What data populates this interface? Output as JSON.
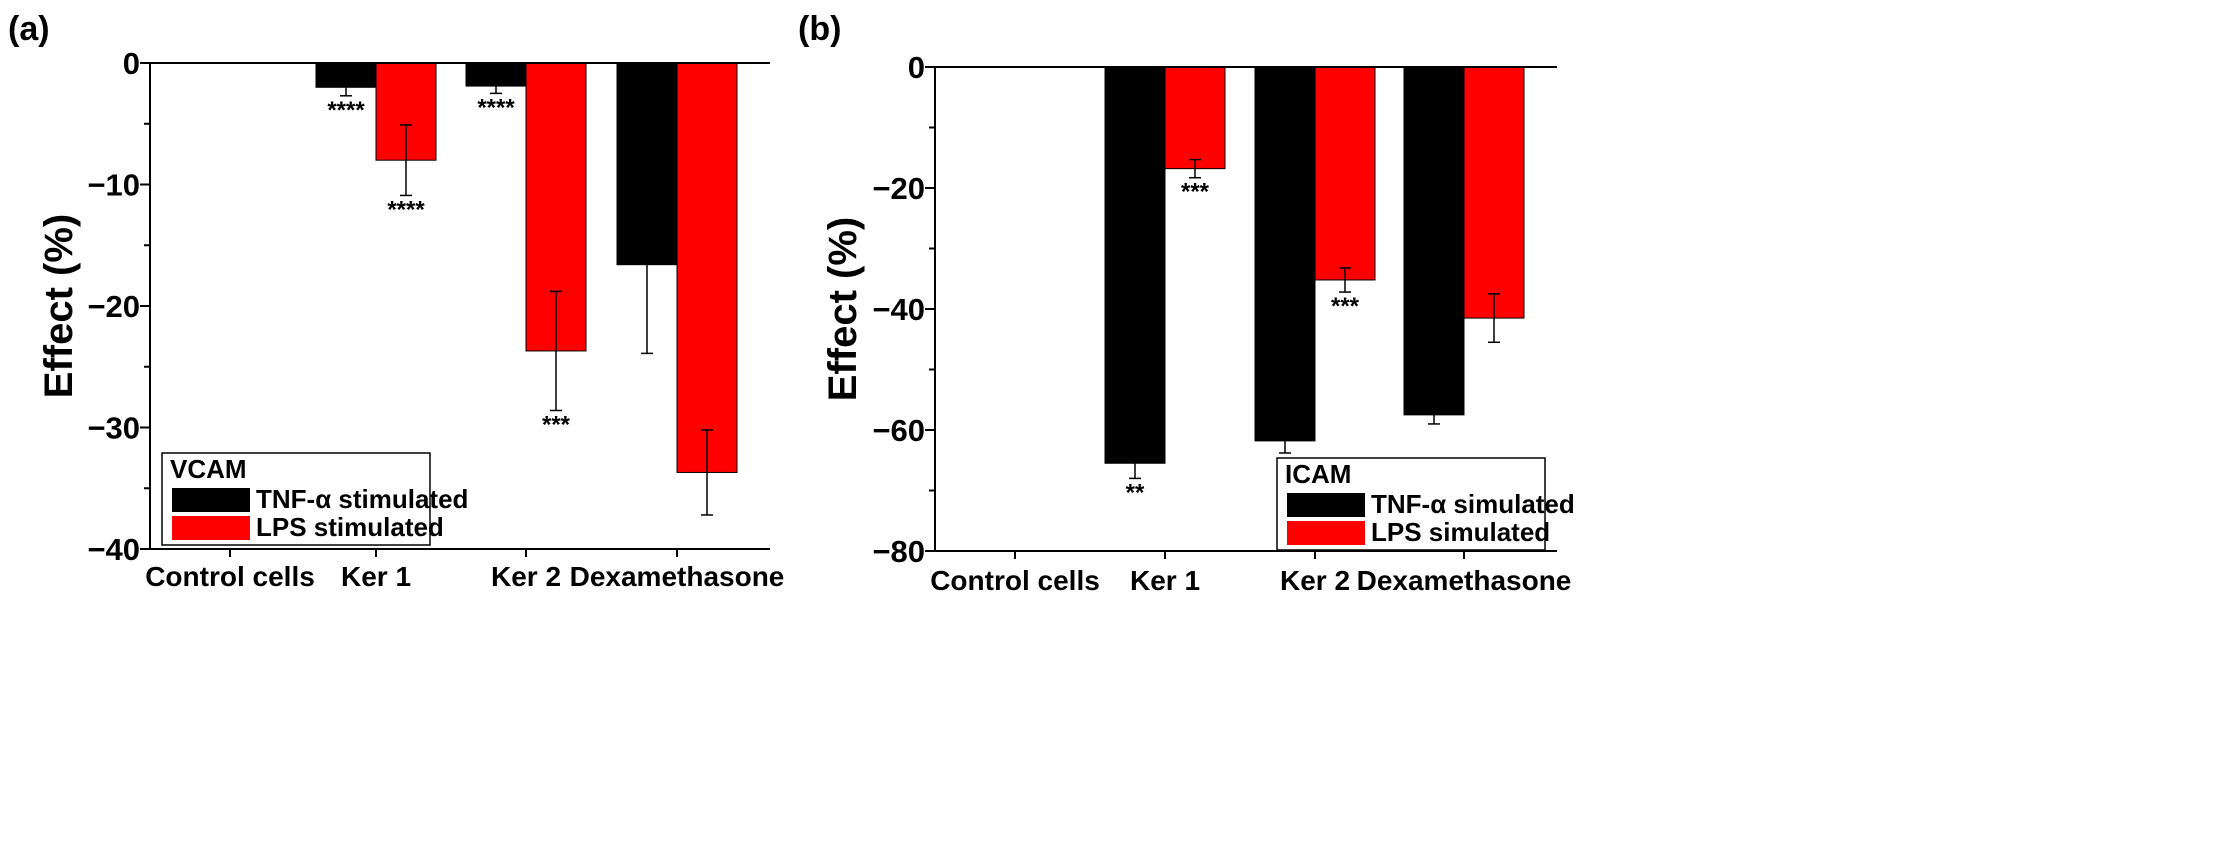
{
  "chart_data": [
    {
      "type": "bar",
      "panel_label": "(a)",
      "ylabel": "Effect (%)",
      "xlabel": "",
      "ylim": [
        -40,
        0
      ],
      "yticks": [
        0,
        -10,
        -20,
        -30,
        -40
      ],
      "ytick_labels": [
        "0",
        "−10",
        "−20",
        "−30",
        "−40"
      ],
      "categories": [
        "Control cells",
        "Ker 1",
        "Ker 2",
        "Dexamethasone"
      ],
      "series": [
        {
          "name": "TNF-α stimulated",
          "color": "#000000",
          "values": [
            null,
            -2.0,
            -1.9,
            -16.6
          ],
          "errors": [
            null,
            0.7,
            0.6,
            7.3
          ],
          "significance": [
            "",
            "****",
            "****",
            ""
          ]
        },
        {
          "name": "LPS stimulated",
          "color": "#ff0000",
          "values": [
            null,
            -8.0,
            -23.7,
            -33.7
          ],
          "errors": [
            null,
            2.9,
            4.9,
            3.5
          ],
          "significance": [
            "",
            "****",
            "***",
            ""
          ]
        }
      ],
      "legend": {
        "title": "VCAM",
        "entries": [
          "TNF-α stimulated",
          "LPS stimulated"
        ],
        "position": "bottom-left"
      }
    },
    {
      "type": "bar",
      "panel_label": "(b)",
      "ylabel": "Effect (%)",
      "xlabel": "",
      "ylim": [
        -80,
        0
      ],
      "yticks": [
        0,
        -20,
        -40,
        -60,
        -80
      ],
      "ytick_labels": [
        "0",
        "−20",
        "−40",
        "−60",
        "−80"
      ],
      "categories": [
        "Control cells",
        "Ker 1",
        "Ker 2",
        "Dexamethasone"
      ],
      "series": [
        {
          "name": "TNF-α simulated",
          "color": "#000000",
          "values": [
            null,
            -65.5,
            -61.8,
            -57.5
          ],
          "errors": [
            null,
            2.5,
            2.0,
            1.5
          ],
          "significance": [
            "",
            "**",
            "",
            ""
          ]
        },
        {
          "name": "LPS simulated",
          "color": "#ff0000",
          "values": [
            null,
            -16.8,
            -35.2,
            -41.5
          ],
          "errors": [
            null,
            1.5,
            2.0,
            4.0
          ],
          "significance": [
            "",
            "***",
            "***",
            ""
          ]
        }
      ],
      "legend": {
        "title": "ICAM",
        "entries": [
          "TNF-α simulated",
          "LPS simulated"
        ],
        "position": "bottom-right"
      }
    }
  ]
}
